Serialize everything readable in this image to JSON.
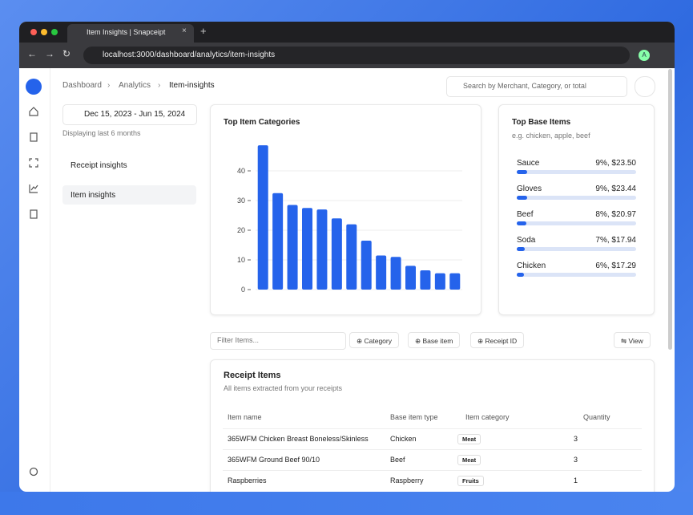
{
  "browser": {
    "tab_title": "Item Insights | Snapceipt",
    "url": "localhost:3000/dashboard/analytics/item-insights",
    "avatar": "A"
  },
  "breadcrumb": [
    "Dashboard",
    "Analytics",
    "Item-insights"
  ],
  "search_placeholder": "Search by Merchant, Category, or total",
  "date_range": "Dec 15, 2023 - Jun 15, 2024",
  "date_note": "Displaying last 6 months",
  "nav": [
    "Receipt insights",
    "Item insights"
  ],
  "chart_data": {
    "type": "bar",
    "title": "Top Item Categories",
    "values": [
      48.6,
      32.5,
      28.5,
      27.5,
      27,
      24,
      22,
      16.5,
      11.5,
      11,
      8,
      6.5,
      5.5,
      5.5
    ],
    "color": "#2563eb",
    "ylim": [
      0,
      50
    ],
    "yticks": [
      0,
      10,
      20,
      30,
      40
    ],
    "grid": true
  },
  "top_base_items": {
    "title": "Top Base Items",
    "subtitle": "e.g. chicken, apple, beef",
    "items": [
      {
        "name": "Sauce",
        "value": 9,
        "value_label": "9%, $23.50"
      },
      {
        "name": "Gloves",
        "value": 9,
        "value_label": "9%, $23.44"
      },
      {
        "name": "Beef",
        "value": 8,
        "value_label": "8%, $20.97"
      },
      {
        "name": "Soda",
        "value": 7,
        "value_label": "7%, $17.94"
      },
      {
        "name": "Chicken",
        "value": 6,
        "value_label": "6%, $17.29"
      }
    ]
  },
  "filter": {
    "placeholder": "Filter Items...",
    "buttons": [
      "Category",
      "Base item",
      "Receipt ID"
    ],
    "view": "View"
  },
  "table": {
    "title": "Receipt Items",
    "subtitle": "All items extracted from your receipts",
    "columns": [
      "Item name",
      "Base item type",
      "Item category",
      "Quantity"
    ],
    "rows": [
      [
        "365WFM Chicken Breast Boneless/Skinless",
        "Chicken",
        "Meat",
        3
      ],
      [
        "365WFM Ground Beef 90/10",
        "Beef",
        "Meat",
        3
      ],
      [
        "Raspberries",
        "Raspberry",
        "Fruits",
        1
      ]
    ]
  }
}
